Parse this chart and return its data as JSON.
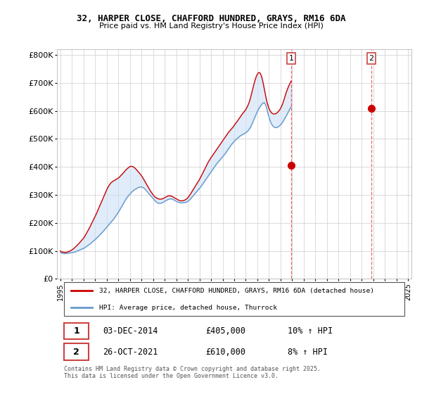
{
  "title": "32, HARPER CLOSE, CHAFFORD HUNDRED, GRAYS, RM16 6DA",
  "subtitle": "Price paid vs. HM Land Registry's House Price Index (HPI)",
  "ylim": [
    0,
    820000
  ],
  "yticks": [
    0,
    100000,
    200000,
    300000,
    400000,
    500000,
    600000,
    700000,
    800000
  ],
  "ytick_labels": [
    "£0",
    "£100K",
    "£200K",
    "£300K",
    "£400K",
    "£500K",
    "£600K",
    "£700K",
    "£800K"
  ],
  "red_line_color": "#cc0000",
  "blue_line_color": "#6699cc",
  "fill_color": "#cce0f5",
  "fill_alpha": 0.6,
  "background_color": "#ffffff",
  "grid_color": "#cccccc",
  "purchase1": {
    "label": "1",
    "date": "03-DEC-2014",
    "price": 405000,
    "hpi_change": "10% ↑ HPI",
    "x": 2014.92
  },
  "purchase2": {
    "label": "2",
    "date": "26-OCT-2021",
    "price": 610000,
    "hpi_change": "8% ↑ HPI",
    "x": 2021.83
  },
  "legend_line1": "32, HARPER CLOSE, CHAFFORD HUNDRED, GRAYS, RM16 6DA (detached house)",
  "legend_line2": "HPI: Average price, detached house, Thurrock",
  "footer": "Contains HM Land Registry data © Crown copyright and database right 2025.\nThis data is licensed under the Open Government Licence v3.0.",
  "hpi_months": [
    95000,
    93000,
    92000,
    91500,
    91000,
    90500,
    91000,
    91500,
    92000,
    92500,
    93000,
    93500,
    94000,
    94500,
    95500,
    96500,
    97500,
    99000,
    100500,
    102000,
    103500,
    105000,
    106500,
    108000,
    109000,
    111000,
    113500,
    116000,
    118500,
    121000,
    123500,
    126000,
    129000,
    132000,
    135000,
    138000,
    141000,
    144000,
    147500,
    151000,
    154500,
    158000,
    161500,
    165000,
    169000,
    173000,
    177000,
    181000,
    185000,
    189000,
    193000,
    197000,
    201000,
    205000,
    209000,
    213000,
    218000,
    223000,
    228000,
    233000,
    238000,
    244000,
    250000,
    256000,
    262000,
    268000,
    274000,
    280000,
    286000,
    291000,
    295000,
    299000,
    303000,
    307000,
    311000,
    314000,
    317000,
    319000,
    321000,
    323000,
    325000,
    326500,
    327500,
    328500,
    328500,
    327500,
    325500,
    322500,
    319000,
    315000,
    311000,
    307000,
    303000,
    299000,
    295000,
    291000,
    287000,
    283000,
    279000,
    276000,
    273000,
    271000,
    270000,
    270000,
    270500,
    271500,
    273000,
    275000,
    277000,
    279000,
    281000,
    283000,
    284500,
    285500,
    286000,
    285500,
    284500,
    283000,
    281000,
    279000,
    277000,
    275500,
    274000,
    273000,
    272500,
    272000,
    271500,
    272000,
    272500,
    273000,
    274000,
    275000,
    277000,
    280000,
    283000,
    287000,
    291000,
    295000,
    299000,
    303000,
    307000,
    311000,
    315000,
    319000,
    323000,
    327500,
    332000,
    337000,
    342000,
    347000,
    352000,
    357000,
    362000,
    367000,
    372000,
    377000,
    382000,
    387000,
    392000,
    397000,
    402000,
    407000,
    412000,
    416000,
    420000,
    424000,
    428000,
    432000,
    436000,
    440000,
    445000,
    449000,
    454000,
    459000,
    464000,
    469000,
    474000,
    479000,
    483000,
    487000,
    491000,
    495000,
    498000,
    501000,
    504000,
    507000,
    510000,
    512000,
    514000,
    516000,
    518000,
    520000,
    522000,
    525000,
    528000,
    532000,
    537000,
    543000,
    550000,
    558000,
    566000,
    574000,
    582000,
    590000,
    598000,
    605000,
    611000,
    616000,
    621000,
    625000,
    628000,
    630000,
    625000,
    616000,
    604000,
    590000,
    578000,
    567000,
    558000,
    551000,
    546000,
    543000,
    541000,
    540000,
    541000,
    542000,
    544000,
    547000,
    550000,
    554000,
    559000,
    565000,
    571000,
    577000,
    583000,
    589000,
    596000,
    603000,
    609000,
    615000
  ],
  "red_months": [
    100000,
    97000,
    96000,
    95500,
    95000,
    94500,
    95000,
    96000,
    97000,
    98500,
    100000,
    102000,
    104000,
    106500,
    109500,
    112500,
    115500,
    119000,
    122500,
    126000,
    130000,
    134000,
    138000,
    142000,
    146000,
    151000,
    157000,
    163000,
    169000,
    175500,
    182000,
    188500,
    196000,
    203000,
    210000,
    217000,
    224000,
    231000,
    239000,
    247000,
    255000,
    263000,
    271000,
    279000,
    287000,
    295000,
    303000,
    311000,
    319000,
    326000,
    332000,
    337000,
    342000,
    345000,
    348000,
    350000,
    352000,
    354000,
    356000,
    358000,
    360000,
    363000,
    367000,
    371000,
    374000,
    378000,
    382000,
    386000,
    390000,
    393000,
    396000,
    399000,
    401000,
    402000,
    402000,
    401000,
    399000,
    396000,
    393000,
    389000,
    385000,
    381000,
    377000,
    373000,
    368000,
    363000,
    357000,
    351000,
    345000,
    339000,
    333000,
    327000,
    321000,
    315000,
    310000,
    305000,
    300000,
    296000,
    292500,
    290000,
    288000,
    286500,
    285500,
    285000,
    285000,
    285500,
    286500,
    288000,
    290000,
    292000,
    294000,
    295500,
    296500,
    297000,
    296500,
    295500,
    294000,
    292000,
    290000,
    288000,
    286000,
    284000,
    282000,
    280500,
    279500,
    279000,
    279000,
    279500,
    280500,
    282000,
    284000,
    286500,
    290000,
    294500,
    299500,
    305000,
    310500,
    316000,
    321500,
    327000,
    332500,
    338000,
    343500,
    349000,
    355000,
    361500,
    368000,
    375000,
    382000,
    389000,
    396000,
    403000,
    410000,
    416500,
    422500,
    428000,
    433000,
    438000,
    443000,
    448000,
    453000,
    458000,
    463000,
    468000,
    473000,
    478000,
    483000,
    488000,
    493000,
    498000,
    503000,
    508000,
    513000,
    518000,
    523000,
    527000,
    531000,
    535000,
    539000,
    543000,
    548000,
    553000,
    558000,
    562000,
    567000,
    572000,
    577000,
    582000,
    587000,
    592000,
    596000,
    600000,
    605000,
    611000,
    618000,
    626000,
    636000,
    648000,
    662000,
    676000,
    690000,
    703000,
    714000,
    724000,
    731000,
    736000,
    737000,
    734000,
    726000,
    714000,
    699000,
    681000,
    663000,
    646000,
    631000,
    619000,
    609000,
    601000,
    596000,
    592000,
    590000,
    589000,
    589000,
    590000,
    592000,
    595000,
    599000,
    603000,
    609000,
    616000,
    624000,
    634000,
    645000,
    656000,
    667000,
    676000,
    685000,
    693000,
    700000,
    706000
  ],
  "start_year": 1995.0,
  "step": 0.08333333333
}
